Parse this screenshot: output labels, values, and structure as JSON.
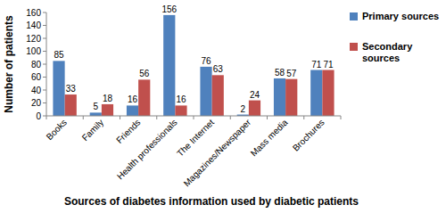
{
  "chart_data": {
    "type": "bar",
    "categories": [
      "Books",
      "Family",
      "Friends",
      "Health professionals",
      "The Internet",
      "Magazines/Newspaper",
      "Mass media",
      "Brochures"
    ],
    "series": [
      {
        "name": "Primary sources",
        "color": "#4f81bd",
        "values": [
          85,
          5,
          16,
          156,
          76,
          2,
          58,
          71
        ]
      },
      {
        "name": "Secondary sources",
        "color": "#c0504d",
        "values": [
          33,
          18,
          56,
          16,
          63,
          24,
          57,
          71
        ]
      }
    ],
    "x_label": "Sources of diabetes information used by diabetic patients",
    "y_label": "Number of patients",
    "ylim": [
      0,
      160
    ],
    "yticks": [
      0,
      20,
      40,
      60,
      80,
      100,
      120,
      140,
      160
    ],
    "grid": false,
    "legend": "right",
    "data_labels": true
  }
}
